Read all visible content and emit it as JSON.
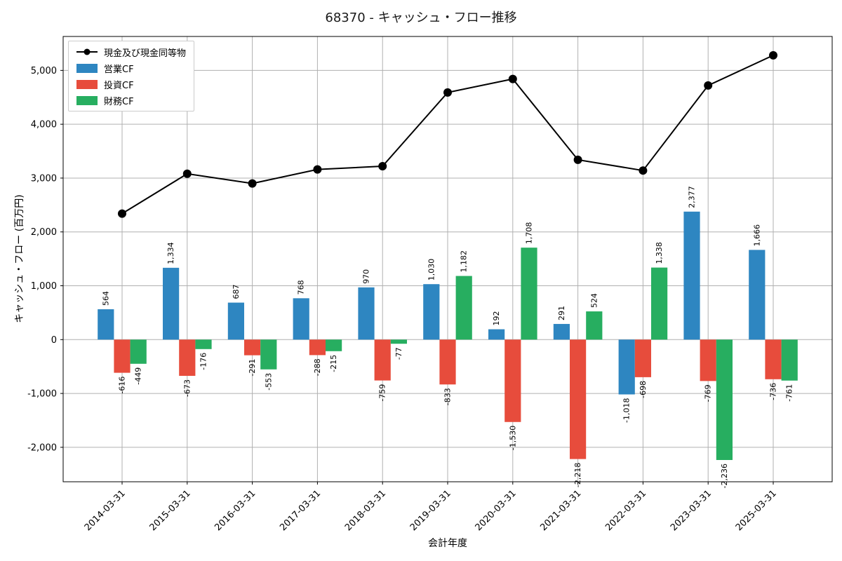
{
  "chart_data": {
    "type": "combo-bar-line",
    "title": "68370 - キャッシュ・フロー推移",
    "xlabel": "会計年度",
    "ylabel": "キャッシュ・フロー (百万円)",
    "categories": [
      "2014-03-31",
      "2015-03-31",
      "2016-03-31",
      "2017-03-31",
      "2018-03-31",
      "2019-03-31",
      "2020-03-31",
      "2021-03-31",
      "2022-03-31",
      "2023-03-31",
      "2025-03-31"
    ],
    "line_series": {
      "name": "現金及び現金同等物",
      "color": "#000000",
      "values": [
        2340,
        3080,
        2900,
        3160,
        3220,
        4590,
        4840,
        3340,
        3140,
        4720,
        5280
      ]
    },
    "bar_series": [
      {
        "name": "営業CF",
        "color": "#2e86c1",
        "values": [
          564,
          1334,
          687,
          768,
          970,
          1030,
          192,
          291,
          -1018,
          2377,
          1666
        ]
      },
      {
        "name": "投資CF",
        "color": "#e74c3c",
        "values": [
          -616,
          -673,
          -291,
          -288,
          -759,
          -833,
          -1530,
          -2218,
          -698,
          -769,
          -736
        ]
      },
      {
        "name": "財務CF",
        "color": "#27ae60",
        "values": [
          -449,
          -176,
          -553,
          -215,
          -77,
          1182,
          1708,
          524,
          1338,
          -2236,
          -761
        ]
      }
    ],
    "yticks": [
      5000,
      4000,
      3000,
      2000,
      1000,
      0,
      -1000,
      -2000
    ],
    "ylim": [
      -2640,
      5630
    ],
    "grid": true,
    "grid_color": "#b0b0b0",
    "spine_color": "#000000",
    "legend_position": "upper left"
  }
}
